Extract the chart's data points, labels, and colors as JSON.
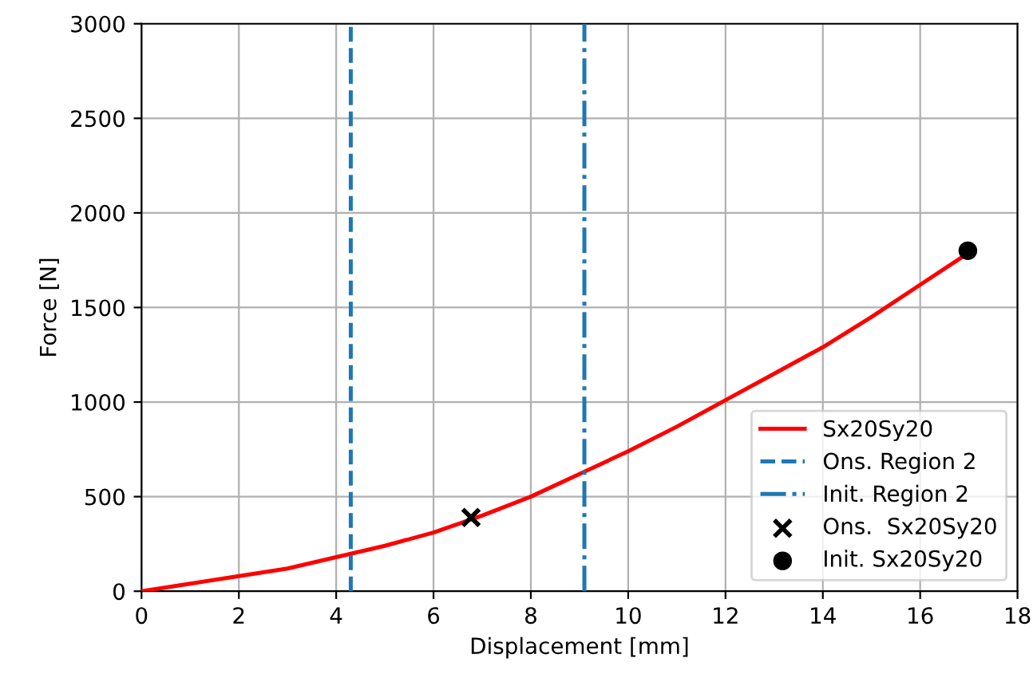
{
  "chart_data": {
    "type": "line",
    "xlabel": "Displacement [mm]",
    "ylabel": "Force [N]",
    "xlim": [
      0,
      18
    ],
    "xticks": [
      0,
      2,
      4,
      6,
      8,
      10,
      12,
      14,
      16,
      18
    ],
    "ylim": [
      0,
      3000
    ],
    "yticks": [
      0,
      500,
      1000,
      1500,
      2000,
      2500,
      3000
    ],
    "grid": true,
    "legend": "bottom right",
    "series": [
      {
        "name": "Sx20Sy20",
        "color": "#ff0000",
        "marker": "none",
        "line_style": "solid",
        "x": [
          0,
          1,
          2,
          3,
          4,
          5,
          6,
          7,
          8,
          9,
          10,
          11,
          12,
          13,
          14,
          15,
          16,
          17
        ],
        "values": [
          0,
          40,
          80,
          120,
          180,
          240,
          310,
          400,
          500,
          620,
          740,
          870,
          1010,
          1150,
          1290,
          1450,
          1620,
          1790
        ]
      },
      {
        "name": "Ons. Region 2",
        "color": "#1f77b4",
        "marker": "none",
        "line_style": "dashed",
        "x": [
          4.3,
          4.3
        ],
        "values": [
          0,
          3000
        ]
      },
      {
        "name": "Init. Region 2",
        "color": "#1f77b4",
        "marker": "none",
        "line_style": "dashdot",
        "x": [
          9.1,
          9.1
        ],
        "values": [
          0,
          3000
        ]
      },
      {
        "name": "Ons.  Sx20Sy20",
        "type": "scatter",
        "color": "#000000",
        "marker": "cross",
        "x": [
          6.77
        ],
        "values": [
          390
        ]
      },
      {
        "name": "Init. Sx20Sy20",
        "type": "scatter",
        "color": "#000000",
        "marker": "circle",
        "x": [
          16.98
        ],
        "values": [
          1800
        ]
      }
    ]
  }
}
